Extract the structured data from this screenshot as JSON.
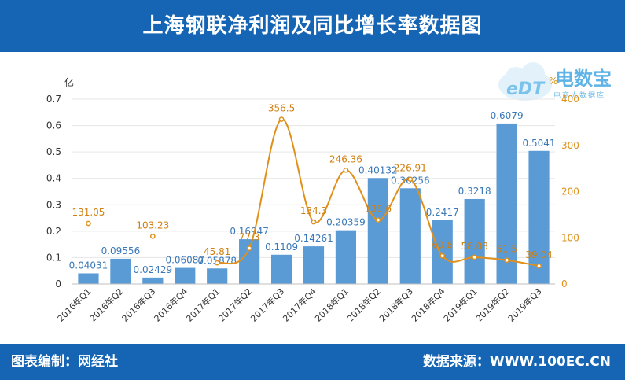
{
  "header": {
    "title": "上海钢联净利润及同比增长率数据图"
  },
  "footer": {
    "left": "图表编制：网经社",
    "right": "数据来源：WWW.100EC.CN"
  },
  "logo": {
    "text": "电数宝",
    "badge": "eDT",
    "subtitle": "电商大数据库"
  },
  "chart_data": {
    "type": "bar+line",
    "categories": [
      "2016年Q1",
      "2016年Q2",
      "2016年Q3",
      "2016年Q4",
      "2017年Q1",
      "2017年Q2",
      "2017年Q3",
      "2017年Q4",
      "2018年Q1",
      "2018年Q2",
      "2018年Q3",
      "2018年Q4",
      "2019年Q1",
      "2019年Q2",
      "2019年Q3"
    ],
    "series": [
      {
        "type": "bar",
        "axis": "left",
        "values": [
          0.04031,
          0.09556,
          0.02429,
          0.06087,
          0.05878,
          0.16947,
          0.1109,
          0.14261,
          0.20359,
          0.40132,
          0.36256,
          0.2417,
          0.3218,
          0.6079,
          0.5041
        ],
        "labels": [
          "0.04031",
          "0.09556",
          "0.02429",
          "0.06087",
          "0.05878",
          "0.16947",
          "0.1109",
          "0.14261",
          "0.20359",
          "0.40132",
          "0.36256",
          "0.2417",
          "0.3218",
          "0.6079",
          "0.5041"
        ],
        "color": "#5b9bd5"
      },
      {
        "type": "line",
        "axis": "right",
        "values": [
          131.05,
          null,
          103.23,
          null,
          45.81,
          77.3,
          356.5,
          134.3,
          246.36,
          138.6,
          226.91,
          60.8,
          58.08,
          51.5,
          39.04
        ],
        "labels": [
          "131.05",
          "",
          "103.23",
          "",
          "45.81",
          "77.3",
          "356.5",
          "134.3",
          "246.36",
          "138.6",
          "226.91",
          "60.8",
          "58.08",
          "51.5",
          "39.04"
        ],
        "color": "#e0901a"
      }
    ],
    "yleft": {
      "unit": "亿",
      "min": 0,
      "max": 0.7,
      "ticks": [
        "0",
        "0.1",
        "0.2",
        "0.3",
        "0.4",
        "0.5",
        "0.6",
        "0.7"
      ]
    },
    "yright": {
      "unit": "%",
      "min": 0,
      "max": 400,
      "ticks": [
        "0",
        "100",
        "200",
        "300",
        "400"
      ]
    }
  }
}
